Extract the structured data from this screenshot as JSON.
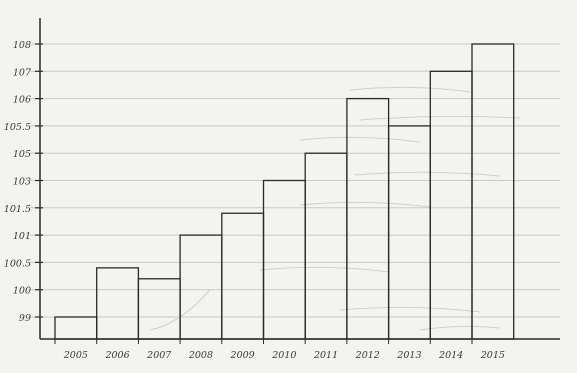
{
  "chart_data": {
    "type": "bar",
    "title": "",
    "xlabel": "",
    "ylabel": "",
    "categories": [
      "2005",
      "2006",
      "2007",
      "2008",
      "2009",
      "2010",
      "2011",
      "2012",
      "2013",
      "2014",
      "2015"
    ],
    "values": [
      99,
      100.4,
      100.2,
      101,
      101.4,
      103,
      105,
      106,
      105.5,
      107,
      108
    ],
    "y_ticks": [
      "99",
      "100",
      "100.5",
      "101",
      "101.5",
      "103",
      "105",
      "105.5",
      "106",
      "107",
      "108"
    ],
    "grid": true,
    "colors": {
      "paper": "#f3f3f0",
      "grid": "#c9c9c9",
      "ink": "#2a2a2a",
      "ghost": "#cfcfcf"
    }
  }
}
